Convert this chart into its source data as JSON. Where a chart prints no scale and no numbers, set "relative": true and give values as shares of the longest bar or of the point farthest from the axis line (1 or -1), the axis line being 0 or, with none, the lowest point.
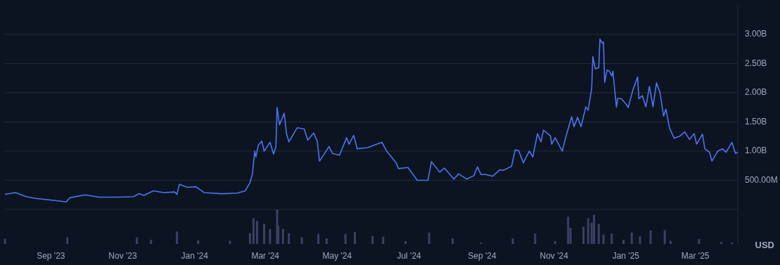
{
  "chart_data": [
    {
      "type": "line",
      "ylabel": "USD",
      "tick_labels": "y",
      "grid": "y",
      "marker": "none",
      "line_style": "solid",
      "xlim": [
        "2023-07-24",
        "2025-04-06"
      ],
      "ylim": [
        0,
        3500000000
      ],
      "yticks": [
        {
          "value": 0,
          "label": null
        },
        {
          "value": 500000000,
          "label": "500.00M"
        },
        {
          "value": 1000000000,
          "label": "1.00B"
        },
        {
          "value": 1500000000,
          "label": "1.50B"
        },
        {
          "value": 2000000000,
          "label": "2.00B"
        },
        {
          "value": 2500000000,
          "label": "2.50B"
        },
        {
          "value": 3000000000,
          "label": "3.00B"
        }
      ],
      "series": [
        {
          "color": "#4c74f0",
          "x": [
            "2023-07-24",
            "2023-08-02",
            "2023-08-11",
            "2023-08-19",
            "2023-09-06",
            "2023-09-14",
            "2023-09-17",
            "2023-09-30",
            "2023-10-12",
            "2023-10-28",
            "2023-11-10",
            "2023-11-15",
            "2023-11-19",
            "2023-11-27",
            "2023-12-06",
            "2023-12-15",
            "2023-12-17",
            "2023-12-19",
            "2023-12-26",
            "2024-01-02",
            "2024-01-09",
            "2024-01-24",
            "2024-02-06",
            "2024-02-13",
            "2024-02-17",
            "2024-02-19",
            "2024-02-21",
            "2024-02-22",
            "2024-02-24",
            "2024-02-27",
            "2024-02-29",
            "2024-03-05",
            "2024-03-08",
            "2024-03-10",
            "2024-03-11",
            "2024-03-13",
            "2024-03-17",
            "2024-03-19",
            "2024-03-21",
            "2024-03-28",
            "2024-04-03",
            "2024-04-06",
            "2024-04-11",
            "2024-04-14",
            "2024-04-16",
            "2024-04-20",
            "2024-04-24",
            "2024-04-27",
            "2024-05-03",
            "2024-05-09",
            "2024-05-11",
            "2024-05-15",
            "2024-05-18",
            "2024-05-27",
            "2024-06-01",
            "2024-06-08",
            "2024-06-12",
            "2024-06-20",
            "2024-06-22",
            "2024-06-30",
            "2024-07-08",
            "2024-07-17",
            "2024-07-20",
            "2024-07-27",
            "2024-07-31",
            "2024-08-08",
            "2024-08-12",
            "2024-08-19",
            "2024-08-25",
            "2024-08-28",
            "2024-08-31",
            "2024-09-04",
            "2024-09-10",
            "2024-09-16",
            "2024-09-19",
            "2024-09-26",
            "2024-09-29",
            "2024-10-02",
            "2024-10-06",
            "2024-10-11",
            "2024-10-14",
            "2024-10-18",
            "2024-10-21",
            "2024-10-23",
            "2024-10-29",
            "2024-10-30",
            "2024-11-02",
            "2024-11-08",
            "2024-11-11",
            "2024-11-16",
            "2024-11-18",
            "2024-11-21",
            "2024-11-24",
            "2024-11-28",
            "2024-11-30",
            "2024-12-03",
            "2024-12-04",
            "2024-12-06",
            "2024-12-09",
            "2024-12-10",
            "2024-12-12",
            "2024-12-13",
            "2024-12-14",
            "2024-12-16",
            "2024-12-18",
            "2024-12-20",
            "2024-12-21",
            "2024-12-24",
            "2024-12-25",
            "2024-12-28",
            "2025-01-01",
            "2025-01-03",
            "2025-01-07",
            "2025-01-11",
            "2025-01-12",
            "2025-01-15",
            "2025-01-18",
            "2025-01-21",
            "2025-01-24",
            "2025-01-27",
            "2025-01-30",
            "2025-02-02",
            "2025-02-04",
            "2025-02-07",
            "2025-02-11",
            "2025-02-16",
            "2025-02-20",
            "2025-02-24",
            "2025-02-28",
            "2025-03-02",
            "2025-03-07",
            "2025-03-09",
            "2025-03-13",
            "2025-03-15",
            "2025-03-20",
            "2025-03-24",
            "2025-03-27",
            "2025-04-01",
            "2025-04-04",
            "2025-04-06"
          ],
          "values": [
            260000000.0,
            290000000.0,
            220000000.0,
            190000000.0,
            150000000.0,
            130000000.0,
            200000000.0,
            250000000.0,
            210000000.0,
            210000000.0,
            220000000.0,
            270000000.0,
            240000000.0,
            320000000.0,
            290000000.0,
            300000000.0,
            260000000.0,
            430000000.0,
            380000000.0,
            390000000.0,
            290000000.0,
            270000000.0,
            280000000.0,
            320000000.0,
            460000000.0,
            600000000.0,
            1000000000.0,
            900000000.0,
            1100000000.0,
            1170000000.0,
            1000000000.0,
            1150000000.0,
            950000000.0,
            1080000000.0,
            1750000000.0,
            1450000000.0,
            1650000000.0,
            1300000000.0,
            1160000000.0,
            1400000000.0,
            1380000000.0,
            1190000000.0,
            1310000000.0,
            1180000000.0,
            830000000.0,
            950000000.0,
            1080000000.0,
            960000000.0,
            930000000.0,
            1230000000.0,
            1120000000.0,
            1270000000.0,
            1040000000.0,
            1060000000.0,
            1100000000.0,
            1150000000.0,
            1000000000.0,
            800000000.0,
            700000000.0,
            720000000.0,
            500000000.0,
            500000000.0,
            820000000.0,
            640000000.0,
            710000000.0,
            520000000.0,
            610000000.0,
            520000000.0,
            580000000.0,
            730000000.0,
            600000000.0,
            600000000.0,
            570000000.0,
            680000000.0,
            670000000.0,
            740000000.0,
            1020000000.0,
            1010000000.0,
            800000000.0,
            1000000000.0,
            900000000.0,
            1300000000.0,
            1160000000.0,
            1360000000.0,
            1260000000.0,
            1120000000.0,
            1230000000.0,
            1000000000.0,
            1240000000.0,
            1590000000.0,
            1420000000.0,
            1580000000.0,
            1420000000.0,
            1760000000.0,
            1700000000.0,
            2080000000.0,
            2620000000.0,
            2410000000.0,
            2430000000.0,
            2920000000.0,
            2850000000.0,
            2870000000.0,
            2180000000.0,
            2390000000.0,
            2370000000.0,
            2290000000.0,
            2370000000.0,
            1750000000.0,
            1900000000.0,
            1900000000.0,
            1810000000.0,
            1750000000.0,
            2050000000.0,
            2270000000.0,
            1900000000.0,
            1950000000.0,
            1760000000.0,
            2110000000.0,
            1760000000.0,
            2170000000.0,
            2000000000.0,
            1600000000.0,
            1720000000.0,
            1400000000.0,
            1220000000.0,
            1260000000.0,
            1330000000.0,
            1200000000.0,
            1300000000.0,
            1120000000.0,
            1290000000.0,
            1040000000.0,
            980000000.0,
            830000000.0,
            1000000000.0,
            1040000000.0,
            980000000.0,
            1150000000.0,
            960000000.0,
            980000000.0
          ]
        }
      ]
    },
    {
      "type": "bar",
      "relative": true,
      "tick_labels": "x",
      "xlim": [
        "2023-07-24",
        "2025-04-06"
      ],
      "xticks": [
        {
          "value": "2023-09-01",
          "label": "Sep '23"
        },
        {
          "value": "2023-11-01",
          "label": "Nov '23"
        },
        {
          "value": "2024-01-01",
          "label": "Jan '24"
        },
        {
          "value": "2024-03-01",
          "label": "Mar '24"
        },
        {
          "value": "2024-05-01",
          "label": "May '24"
        },
        {
          "value": "2024-07-01",
          "label": "Jul '24"
        },
        {
          "value": "2024-09-01",
          "label": "Sep '24"
        },
        {
          "value": "2024-11-01",
          "label": "Nov '24"
        },
        {
          "value": "2025-01-01",
          "label": "Jan '25"
        },
        {
          "value": "2025-03-01",
          "label": "Mar '25"
        }
      ],
      "series": [
        {
          "color": "#3a4163",
          "x": [
            "2023-07-24",
            "2023-09-15",
            "2023-11-13",
            "2023-11-25",
            "2023-12-17",
            "2024-01-04",
            "2024-01-31",
            "2024-02-17",
            "2024-02-20",
            "2024-02-23",
            "2024-02-29",
            "2024-03-05",
            "2024-03-11",
            "2024-03-12",
            "2024-03-16",
            "2024-03-21",
            "2024-04-01",
            "2024-04-15",
            "2024-04-22",
            "2024-05-08",
            "2024-05-16",
            "2024-05-31",
            "2024-06-09",
            "2024-06-28",
            "2024-07-18",
            "2024-08-07",
            "2024-08-31",
            "2024-09-27",
            "2024-10-16",
            "2024-11-02",
            "2024-11-13",
            "2024-11-15",
            "2024-11-26",
            "2024-11-30",
            "2024-12-03",
            "2024-12-05",
            "2024-12-09",
            "2024-12-13",
            "2024-12-20",
            "2024-12-30",
            "2025-01-06",
            "2025-01-13",
            "2025-01-22",
            "2025-02-03",
            "2025-02-08",
            "2025-03-04",
            "2025-03-23",
            "2025-04-01"
          ],
          "values": [
            0.15,
            0.19,
            0.19,
            0.12,
            0.36,
            0.1,
            0.09,
            0.31,
            0.75,
            0.67,
            0.58,
            0.43,
            1,
            0.54,
            0.44,
            0.31,
            0.19,
            0.29,
            0.16,
            0.29,
            0.35,
            0.23,
            0.21,
            0.08,
            0.33,
            0.16,
            0.04,
            0.16,
            0.3,
            0.08,
            0.79,
            0.47,
            0.5,
            0.74,
            0.62,
            0.85,
            0.58,
            0.27,
            0.3,
            0.12,
            0.33,
            0.22,
            0.39,
            0.4,
            0.09,
            0.14,
            0.06,
            0.04
          ]
        }
      ]
    }
  ]
}
